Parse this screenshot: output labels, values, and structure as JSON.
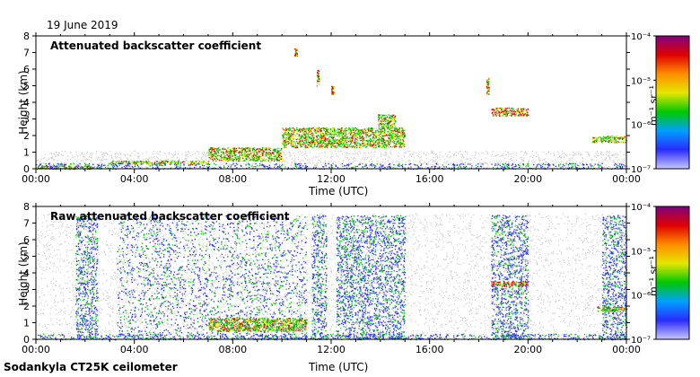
{
  "date_label": "19 June 2019",
  "footer_label": "Sodankyla CT25K ceilometer",
  "chart_data": [
    {
      "type": "heatmap",
      "title": "Attenuated backscatter coefficient",
      "xlabel": "Time (UTC)",
      "ylabel": "Height (km)",
      "xlim": [
        "00:00",
        "00:00"
      ],
      "ylim": [
        0,
        8
      ],
      "x_ticks": [
        "00:00",
        "04:00",
        "08:00",
        "12:00",
        "16:00",
        "20:00",
        "00:00"
      ],
      "y_ticks": [
        "0",
        "1",
        "2",
        "3",
        "4",
        "5",
        "6",
        "7",
        "8"
      ],
      "colorbar": {
        "label": "m⁻¹ sr⁻¹",
        "scale": "log",
        "range": [
          1e-07,
          0.0001
        ],
        "ticks": [
          "10⁻⁴",
          "10⁻⁵",
          "10⁻⁶",
          "10⁻⁷"
        ]
      },
      "features": [
        {
          "time_h": [
            0,
            2.3
          ],
          "height_km": [
            0.0,
            0.2
          ],
          "level": "high"
        },
        {
          "time_h": [
            3.0,
            7.0
          ],
          "height_km": [
            0.3,
            0.5
          ],
          "level": "high"
        },
        {
          "time_h": [
            7.0,
            10.0
          ],
          "height_km": [
            0.5,
            1.3
          ],
          "level": "high"
        },
        {
          "time_h": [
            10.0,
            15.0
          ],
          "height_km": [
            1.3,
            2.5
          ],
          "level": "high"
        },
        {
          "time_h": [
            13.9,
            14.6
          ],
          "height_km": [
            2.5,
            3.3
          ],
          "level": "high"
        },
        {
          "time_h": [
            18.5,
            20.0
          ],
          "height_km": [
            3.2,
            3.7
          ],
          "level": "very high"
        },
        {
          "time_h": [
            22.6,
            24.0
          ],
          "height_km": [
            1.6,
            2.0
          ],
          "level": "high"
        },
        {
          "time_h": [
            10.5,
            10.6
          ],
          "height_km": [
            6.8,
            7.3
          ],
          "level": "very high"
        },
        {
          "time_h": [
            11.4,
            11.5
          ],
          "height_km": [
            5.0,
            6.0
          ],
          "level": "very high"
        },
        {
          "time_h": [
            12.0,
            12.1
          ],
          "height_km": [
            4.5,
            5.0
          ],
          "level": "very high"
        },
        {
          "time_h": [
            18.3,
            18.4
          ],
          "height_km": [
            4.5,
            5.5
          ],
          "level": "very high"
        }
      ]
    },
    {
      "type": "heatmap",
      "title": "Raw attenuated backscatter coefficient",
      "xlabel": "Time (UTC)",
      "ylabel": "Height (km)",
      "xlim": [
        "00:00",
        "00:00"
      ],
      "ylim": [
        0,
        8
      ],
      "x_ticks": [
        "00:00",
        "04:00",
        "08:00",
        "12:00",
        "16:00",
        "20:00",
        "00:00"
      ],
      "y_ticks": [
        "0",
        "1",
        "2",
        "3",
        "4",
        "5",
        "6",
        "7",
        "8"
      ],
      "colorbar": {
        "label": "m⁻¹ sr⁻¹",
        "scale": "log",
        "range": [
          1e-07,
          0.0001
        ],
        "ticks": [
          "10⁻⁴",
          "10⁻⁵",
          "10⁻⁶",
          "10⁻⁷"
        ]
      },
      "features": [
        {
          "time_h": [
            1.6,
            2.5
          ],
          "height_km": [
            0,
            7.5
          ],
          "level": "noise"
        },
        {
          "time_h": [
            3.3,
            11.0
          ],
          "height_km": [
            0,
            7.5
          ],
          "level": "noise"
        },
        {
          "time_h": [
            11.2,
            11.8
          ],
          "height_km": [
            0,
            7.5
          ],
          "level": "noise"
        },
        {
          "time_h": [
            12.2,
            15.0
          ],
          "height_km": [
            0,
            7.5
          ],
          "level": "noise"
        },
        {
          "time_h": [
            18.5,
            20.0
          ],
          "height_km": [
            0,
            7.5
          ],
          "level": "noise"
        },
        {
          "time_h": [
            23.0,
            24.0
          ],
          "height_km": [
            0,
            7.5
          ],
          "level": "noise"
        },
        {
          "time_h": [
            7.0,
            11.0
          ],
          "height_km": [
            0.5,
            1.3
          ],
          "level": "high"
        },
        {
          "time_h": [
            18.5,
            20.0
          ],
          "height_km": [
            3.2,
            3.5
          ],
          "level": "very high"
        },
        {
          "time_h": [
            22.8,
            24.0
          ],
          "height_km": [
            1.7,
            2.0
          ],
          "level": "high"
        }
      ]
    }
  ],
  "colors": {
    "noise_gray": "#d0d0d0",
    "blue": "#2b2bff",
    "green": "#00c800",
    "yellow": "#e6e600",
    "red": "#e00000",
    "purple": "#800080"
  }
}
